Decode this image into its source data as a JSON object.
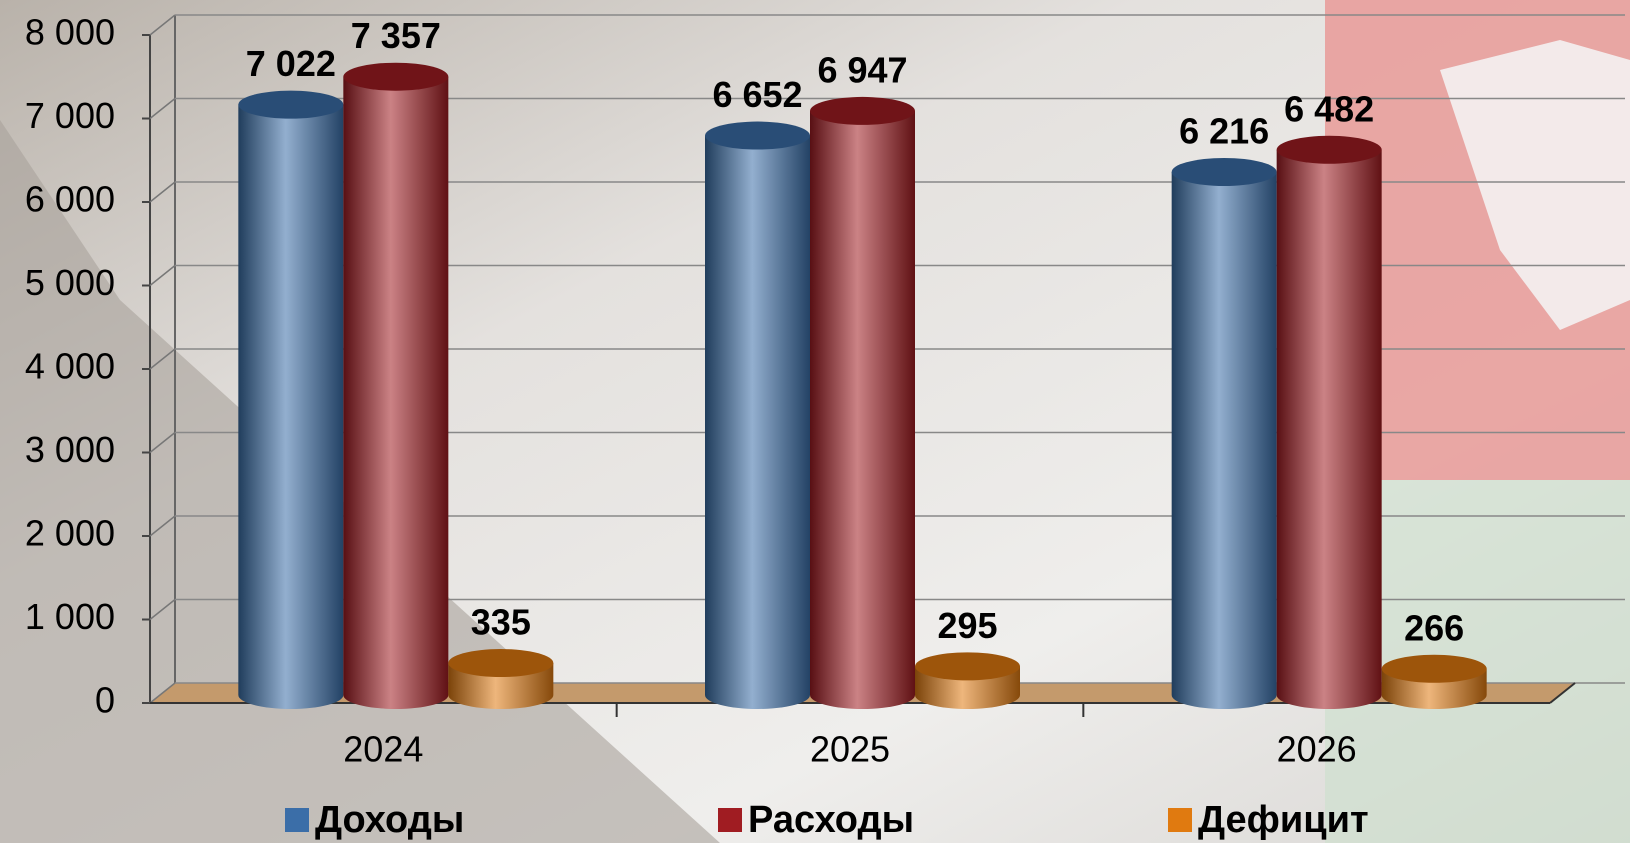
{
  "chart_data": {
    "type": "bar3d",
    "categories": [
      "2024",
      "2025",
      "2026"
    ],
    "series": [
      {
        "name": "Доходы",
        "color": "#3b6ea8",
        "values": [
          7022,
          6652,
          6216
        ],
        "value_labels": [
          "7 022",
          "6 652",
          "6 216"
        ]
      },
      {
        "name": "Расходы",
        "color": "#a01c22",
        "values": [
          7357,
          6947,
          6482
        ],
        "value_labels": [
          "7 357",
          "6 947",
          "6 482"
        ]
      },
      {
        "name": "Дефицит",
        "color": "#e07a10",
        "values": [
          335,
          295,
          266
        ],
        "value_labels": [
          "335",
          "295",
          "266"
        ]
      }
    ],
    "ylim": [
      0,
      8000
    ],
    "yticks": [
      0,
      {
        "value": 1000,
        "label": "1 000"
      },
      {
        "value": 2000,
        "label": "2 000"
      },
      {
        "value": 3000,
        "label": "3 000"
      },
      {
        "value": 4000,
        "label": "4 000"
      },
      {
        "value": 5000,
        "label": "5 000"
      },
      {
        "value": 6000,
        "label": "6 000"
      },
      {
        "value": 7000,
        "label": "7 000"
      },
      {
        "value": 8000,
        "label": "8 000"
      }
    ],
    "grid": true,
    "legend": "bottom"
  }
}
